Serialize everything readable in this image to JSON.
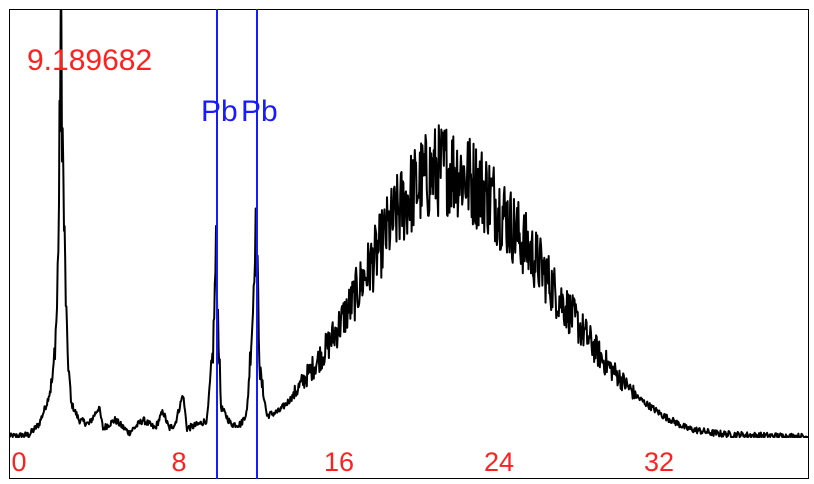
{
  "chart_data": {
    "type": "line",
    "peak_value_label": "9.189682",
    "xlim": [
      -0.5,
      39.5
    ],
    "ylim": [
      0,
      1
    ],
    "x_ticks": [
      "0",
      "8",
      "16",
      "24",
      "32"
    ],
    "x_tick_values": [
      0,
      8,
      16,
      24,
      32
    ],
    "grid": false,
    "markers": [
      {
        "label": "Pb",
        "x": 9.9
      },
      {
        "label": "Pb",
        "x": 11.9
      }
    ],
    "series": [
      {
        "color": "#000000",
        "points": [
          [
            -0.5,
            0.0
          ],
          [
            0.5,
            0.005
          ],
          [
            1.0,
            0.03
          ],
          [
            1.4,
            0.08
          ],
          [
            1.7,
            0.14
          ],
          [
            1.9,
            0.3
          ],
          [
            2.0,
            0.55
          ],
          [
            2.05,
            0.8
          ],
          [
            2.1,
            1.0
          ],
          [
            2.15,
            0.78
          ],
          [
            2.25,
            0.5
          ],
          [
            2.4,
            0.22
          ],
          [
            2.6,
            0.08
          ],
          [
            3.0,
            0.04
          ],
          [
            3.5,
            0.03
          ],
          [
            4.0,
            0.07
          ],
          [
            4.2,
            0.02
          ],
          [
            4.8,
            0.04
          ],
          [
            5.5,
            0.01
          ],
          [
            6.2,
            0.04
          ],
          [
            6.8,
            0.02
          ],
          [
            7.2,
            0.06
          ],
          [
            7.5,
            0.02
          ],
          [
            7.8,
            0.03
          ],
          [
            8.2,
            0.1
          ],
          [
            8.4,
            0.02
          ],
          [
            9.0,
            0.03
          ],
          [
            9.4,
            0.04
          ],
          [
            9.7,
            0.2
          ],
          [
            9.85,
            0.43
          ],
          [
            9.95,
            0.28
          ],
          [
            10.1,
            0.07
          ],
          [
            10.6,
            0.03
          ],
          [
            11.1,
            0.03
          ],
          [
            11.4,
            0.06
          ],
          [
            11.7,
            0.3
          ],
          [
            11.8,
            0.49
          ],
          [
            11.9,
            0.42
          ],
          [
            12.05,
            0.15
          ],
          [
            12.4,
            0.05
          ],
          [
            13.0,
            0.06
          ],
          [
            13.6,
            0.09
          ],
          [
            14.2,
            0.13
          ],
          [
            14.8,
            0.17
          ],
          [
            15.4,
            0.21
          ],
          [
            16.0,
            0.26
          ],
          [
            16.6,
            0.31
          ],
          [
            17.2,
            0.37
          ],
          [
            17.8,
            0.42
          ],
          [
            18.4,
            0.48
          ],
          [
            19.0,
            0.53
          ],
          [
            19.6,
            0.57
          ],
          [
            20.2,
            0.6
          ],
          [
            20.8,
            0.62
          ],
          [
            21.4,
            0.63
          ],
          [
            22.0,
            0.62
          ],
          [
            22.6,
            0.6
          ],
          [
            23.2,
            0.58
          ],
          [
            23.8,
            0.55
          ],
          [
            24.4,
            0.51
          ],
          [
            25.0,
            0.47
          ],
          [
            25.6,
            0.43
          ],
          [
            26.2,
            0.39
          ],
          [
            26.8,
            0.34
          ],
          [
            27.4,
            0.3
          ],
          [
            28.0,
            0.26
          ],
          [
            28.6,
            0.22
          ],
          [
            29.2,
            0.18
          ],
          [
            29.8,
            0.15
          ],
          [
            30.4,
            0.12
          ],
          [
            31.0,
            0.09
          ],
          [
            31.6,
            0.07
          ],
          [
            32.2,
            0.05
          ],
          [
            32.8,
            0.035
          ],
          [
            33.4,
            0.02
          ],
          [
            34.0,
            0.015
          ],
          [
            34.6,
            0.01
          ],
          [
            35.2,
            0.007
          ],
          [
            36.0,
            0.005
          ],
          [
            37.0,
            0.003
          ],
          [
            38.0,
            0.002
          ],
          [
            39.5,
            0.0
          ]
        ]
      }
    ]
  }
}
